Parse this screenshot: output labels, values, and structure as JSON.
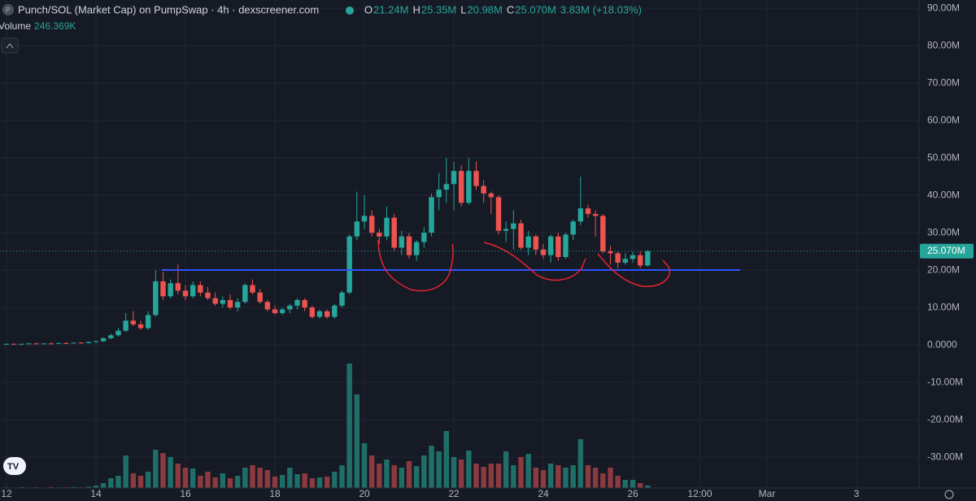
{
  "chart_data": {
    "type": "candlestick",
    "title": "Punch/SOL (Market Cap) on PumpSwap · 4h · dexscreener.com",
    "ohlc": [
      {
        "label": "O",
        "value": "21.24M"
      },
      {
        "label": "H",
        "value": "25.35M"
      },
      {
        "label": "L",
        "value": "20.98M"
      },
      {
        "label": "C",
        "value": "25.070M"
      }
    ],
    "change": "3.83M (+18.03%)",
    "volume_label": "Volume",
    "volume_value": "246.369K",
    "x": [
      0,
      1,
      2,
      3,
      4,
      5,
      6,
      7,
      8,
      9,
      10,
      11,
      12,
      13,
      14,
      15,
      16,
      17,
      18,
      19,
      20,
      21,
      22,
      23,
      24,
      25,
      26,
      27,
      28,
      29,
      30,
      31,
      32,
      33,
      34,
      35,
      36,
      37,
      38,
      39,
      40,
      41,
      42,
      43,
      44,
      45,
      46,
      47,
      48,
      49,
      50,
      51,
      52,
      53,
      54,
      55,
      56,
      57,
      58,
      59,
      60,
      61,
      62,
      63,
      64,
      65,
      66,
      67,
      68,
      69,
      70,
      71,
      72,
      73,
      74,
      75,
      76,
      77,
      78,
      79,
      80,
      81,
      82,
      83,
      84,
      85,
      86
    ],
    "open": [
      0.2,
      0.3,
      0.2,
      0.3,
      0.4,
      0.3,
      0.4,
      0.3,
      0.5,
      0.4,
      0.6,
      0.5,
      0.8,
      1.0,
      1.8,
      2.6,
      3.8,
      6.5,
      5.5,
      4.5,
      8.0,
      17.0,
      13.0,
      16.5,
      14.5,
      13.0,
      16.0,
      14.0,
      12.5,
      11.0,
      12.0,
      10.0,
      11.5,
      16.0,
      14.0,
      11.5,
      9.5,
      8.5,
      9.5,
      10.5,
      12.0,
      10.0,
      7.5,
      9.0,
      7.5,
      10.5,
      14.0,
      29.0,
      33.0,
      34.5,
      30.0,
      29.0,
      34.0,
      26.0,
      29.0,
      24.0,
      27.5,
      30.0,
      39.5,
      41.5,
      43.0,
      46.5,
      38.0,
      46.5,
      42.5,
      40.5,
      39.5,
      30.5,
      31.0,
      32.5,
      26.0,
      29.0,
      25.5,
      24.0,
      29.0,
      23.5,
      29.5,
      33.0,
      36.5,
      35.0,
      34.5,
      25.0,
      24.5,
      22.0,
      23.0,
      24.0,
      21.24
    ],
    "high": [
      0.4,
      0.4,
      0.3,
      0.5,
      0.5,
      0.4,
      0.6,
      0.5,
      0.7,
      0.6,
      0.8,
      0.9,
      1.2,
      2.0,
      3.0,
      4.5,
      8.5,
      9.0,
      6.5,
      9.0,
      20.0,
      19.5,
      17.5,
      21.5,
      16.0,
      17.0,
      17.0,
      15.5,
      14.0,
      13.0,
      13.5,
      12.5,
      16.5,
      17.5,
      15.0,
      12.0,
      10.5,
      10.0,
      11.0,
      12.5,
      12.5,
      10.5,
      9.5,
      9.5,
      11.0,
      14.5,
      29.5,
      41.0,
      40.0,
      36.0,
      31.0,
      37.0,
      35.0,
      30.5,
      30.0,
      28.0,
      31.5,
      40.5,
      46.0,
      50.0,
      49.0,
      48.0,
      50.0,
      49.0,
      44.0,
      41.0,
      40.0,
      33.0,
      36.0,
      33.5,
      30.5,
      29.5,
      27.0,
      29.5,
      30.0,
      30.0,
      33.5,
      45.0,
      37.5,
      36.0,
      35.0,
      26.5,
      25.0,
      24.5,
      25.0,
      25.0,
      25.35
    ],
    "low": [
      0.1,
      0.2,
      0.1,
      0.2,
      0.2,
      0.2,
      0.3,
      0.2,
      0.3,
      0.3,
      0.4,
      0.4,
      0.6,
      0.8,
      1.5,
      2.2,
      3.5,
      5.0,
      4.0,
      4.0,
      7.5,
      12.0,
      12.5,
      13.5,
      12.0,
      12.5,
      13.0,
      12.0,
      10.5,
      10.0,
      9.5,
      9.0,
      11.0,
      13.5,
      11.0,
      9.0,
      8.0,
      8.0,
      8.5,
      9.5,
      9.0,
      7.0,
      7.0,
      7.0,
      7.0,
      10.0,
      13.5,
      28.0,
      31.0,
      29.0,
      27.0,
      28.0,
      25.0,
      24.0,
      23.0,
      22.5,
      26.0,
      29.0,
      36.0,
      38.0,
      36.0,
      37.0,
      37.5,
      41.5,
      38.0,
      35.0,
      29.5,
      27.5,
      25.5,
      25.5,
      24.0,
      24.0,
      23.0,
      22.0,
      22.5,
      23.0,
      28.0,
      32.0,
      34.0,
      29.0,
      24.5,
      21.5,
      20.5,
      21.5,
      22.0,
      20.5,
      20.98
    ],
    "close": [
      0.3,
      0.2,
      0.3,
      0.4,
      0.3,
      0.4,
      0.3,
      0.5,
      0.4,
      0.6,
      0.5,
      0.8,
      1.0,
      1.8,
      2.6,
      3.8,
      6.5,
      5.5,
      4.5,
      8.0,
      17.0,
      13.0,
      16.5,
      14.5,
      13.0,
      16.0,
      14.0,
      12.5,
      11.0,
      12.0,
      10.0,
      11.5,
      16.0,
      14.0,
      11.5,
      9.5,
      8.5,
      9.5,
      10.5,
      12.0,
      10.0,
      7.5,
      9.0,
      7.5,
      10.5,
      14.0,
      29.0,
      33.0,
      34.5,
      30.0,
      29.0,
      34.0,
      26.0,
      29.0,
      24.0,
      27.5,
      30.0,
      39.5,
      41.5,
      43.0,
      46.5,
      38.0,
      46.5,
      42.5,
      40.5,
      39.5,
      30.5,
      31.0,
      32.5,
      26.0,
      29.0,
      25.5,
      24.0,
      29.0,
      23.5,
      29.5,
      33.0,
      36.5,
      35.0,
      34.5,
      25.0,
      24.5,
      22.0,
      23.0,
      24.0,
      21.24,
      25.07
    ],
    "volume": [
      60,
      40,
      80,
      50,
      70,
      40,
      90,
      60,
      80,
      100,
      70,
      120,
      240,
      480,
      960,
      1200,
      3200,
      1440,
      1200,
      1600,
      3760,
      3440,
      3040,
      2400,
      2000,
      1920,
      1200,
      1600,
      1040,
      1440,
      960,
      1200,
      2000,
      2240,
      2000,
      1760,
      1120,
      1280,
      2000,
      1360,
      1440,
      960,
      1040,
      1120,
      1600,
      2240,
      12240,
      9200,
      4400,
      3200,
      2400,
      2800,
      2240,
      2000,
      2640,
      2160,
      3200,
      4160,
      3600,
      5600,
      3040,
      2800,
      3680,
      2400,
      2080,
      2400,
      2400,
      3600,
      2240,
      3040,
      3360,
      2000,
      1760,
      2400,
      2240,
      2000,
      2240,
      4800,
      2240,
      2000,
      1440,
      2000,
      1200,
      800,
      800,
      480,
      246.369
    ],
    "volume_ylim": [
      0,
      12400
    ],
    "xlim": [
      -0.873,
      122.4
    ],
    "xticks": [
      {
        "value": 0,
        "label": "12"
      },
      {
        "value": 12,
        "label": "14"
      },
      {
        "value": 24,
        "label": "16"
      },
      {
        "value": 36,
        "label": "18"
      },
      {
        "value": 48,
        "label": "20"
      },
      {
        "value": 60,
        "label": "22"
      },
      {
        "value": 72,
        "label": "24"
      },
      {
        "value": 84,
        "label": "26"
      },
      {
        "value": 93,
        "label": "12:00"
      },
      {
        "value": 102,
        "label": "Mar"
      },
      {
        "value": 114,
        "label": "3"
      }
    ],
    "ylim": [
      -37.8,
      92.2
    ],
    "yticks": [
      {
        "value": 90,
        "label": "90.00M"
      },
      {
        "value": 80,
        "label": "80.00M"
      },
      {
        "value": 70,
        "label": "70.00M"
      },
      {
        "value": 60,
        "label": "60.00M"
      },
      {
        "value": 50,
        "label": "50.00M"
      },
      {
        "value": 40,
        "label": "40.00M"
      },
      {
        "value": 30,
        "label": "30.00M"
      },
      {
        "value": 20,
        "label": "20.00M"
      },
      {
        "value": 10,
        "label": "10.00M"
      },
      {
        "value": 0,
        "label": "0.0000"
      },
      {
        "value": -10,
        "label": "-10.00M"
      },
      {
        "value": -20,
        "label": "-20.00M"
      },
      {
        "value": -30,
        "label": "-30.00M"
      }
    ],
    "grid": true,
    "up_color": "#26a69a",
    "down_color": "#ef5350",
    "volume_up_color": "#1f6f68",
    "volume_down_color": "#8c3a3f"
  }
}
